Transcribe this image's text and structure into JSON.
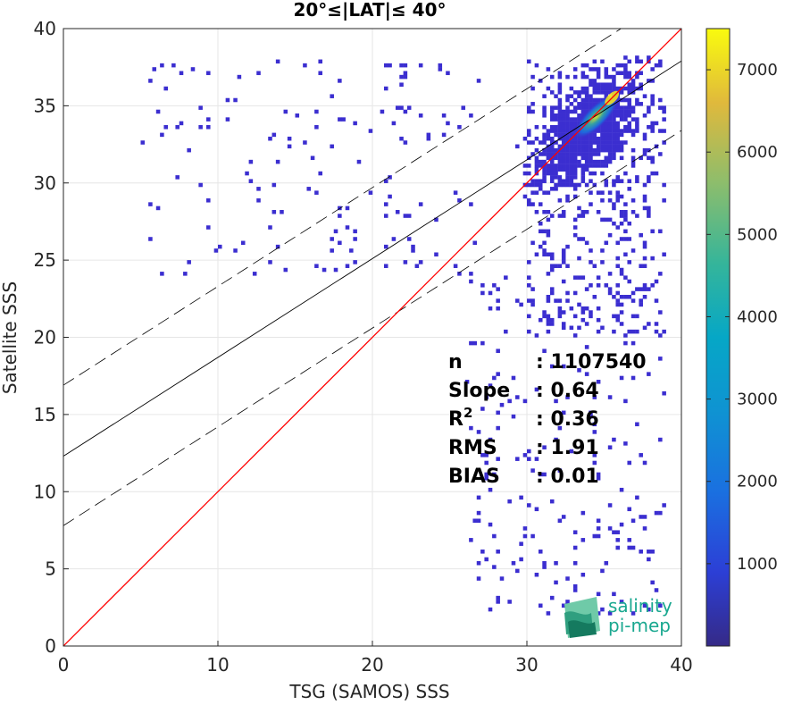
{
  "chart_data": {
    "type": "heatmap",
    "title": "20°≤|LAT|≤ 40°",
    "xlabel": "TSG (SAMOS) SSS",
    "ylabel": "Satellite SSS",
    "xlim": [
      0,
      40
    ],
    "ylim": [
      0,
      40
    ],
    "xticks": [
      "0",
      "10",
      "20",
      "30",
      "40"
    ],
    "yticks": [
      "0",
      "5",
      "10",
      "15",
      "20",
      "25",
      "30",
      "35",
      "40"
    ],
    "grid": true,
    "colormap": "parula",
    "colorbar": {
      "range": [
        0,
        7500
      ],
      "ticks": [
        "1000",
        "2000",
        "3000",
        "4000",
        "5000",
        "6000",
        "7000"
      ]
    },
    "lines": {
      "identity": {
        "slope": 1,
        "intercept": 0,
        "color": "#ff0000"
      },
      "regression": {
        "slope": 0.64,
        "intercept": 12.3,
        "color": "#000000"
      },
      "upper_bound": {
        "slope": 0.64,
        "intercept": 16.9,
        "style": "dashed"
      },
      "lower_bound": {
        "slope": 0.64,
        "intercept": 7.8,
        "style": "dashed"
      }
    },
    "density_core": {
      "x": 35.5,
      "y": 35.5,
      "peak_count": 7400
    },
    "stats": [
      {
        "label": "n",
        "value": ": 1107540"
      },
      {
        "label": "Slope",
        "value": ": 0.64"
      },
      {
        "label": "R",
        "sup": "2",
        "value": ": 0.36"
      },
      {
        "label": "RMS",
        "value": ": 1.91"
      },
      {
        "label": "BIAS",
        "value": ": 0.01"
      }
    ]
  },
  "logo": {
    "line1": "salinity",
    "line2": "pi-mep"
  }
}
